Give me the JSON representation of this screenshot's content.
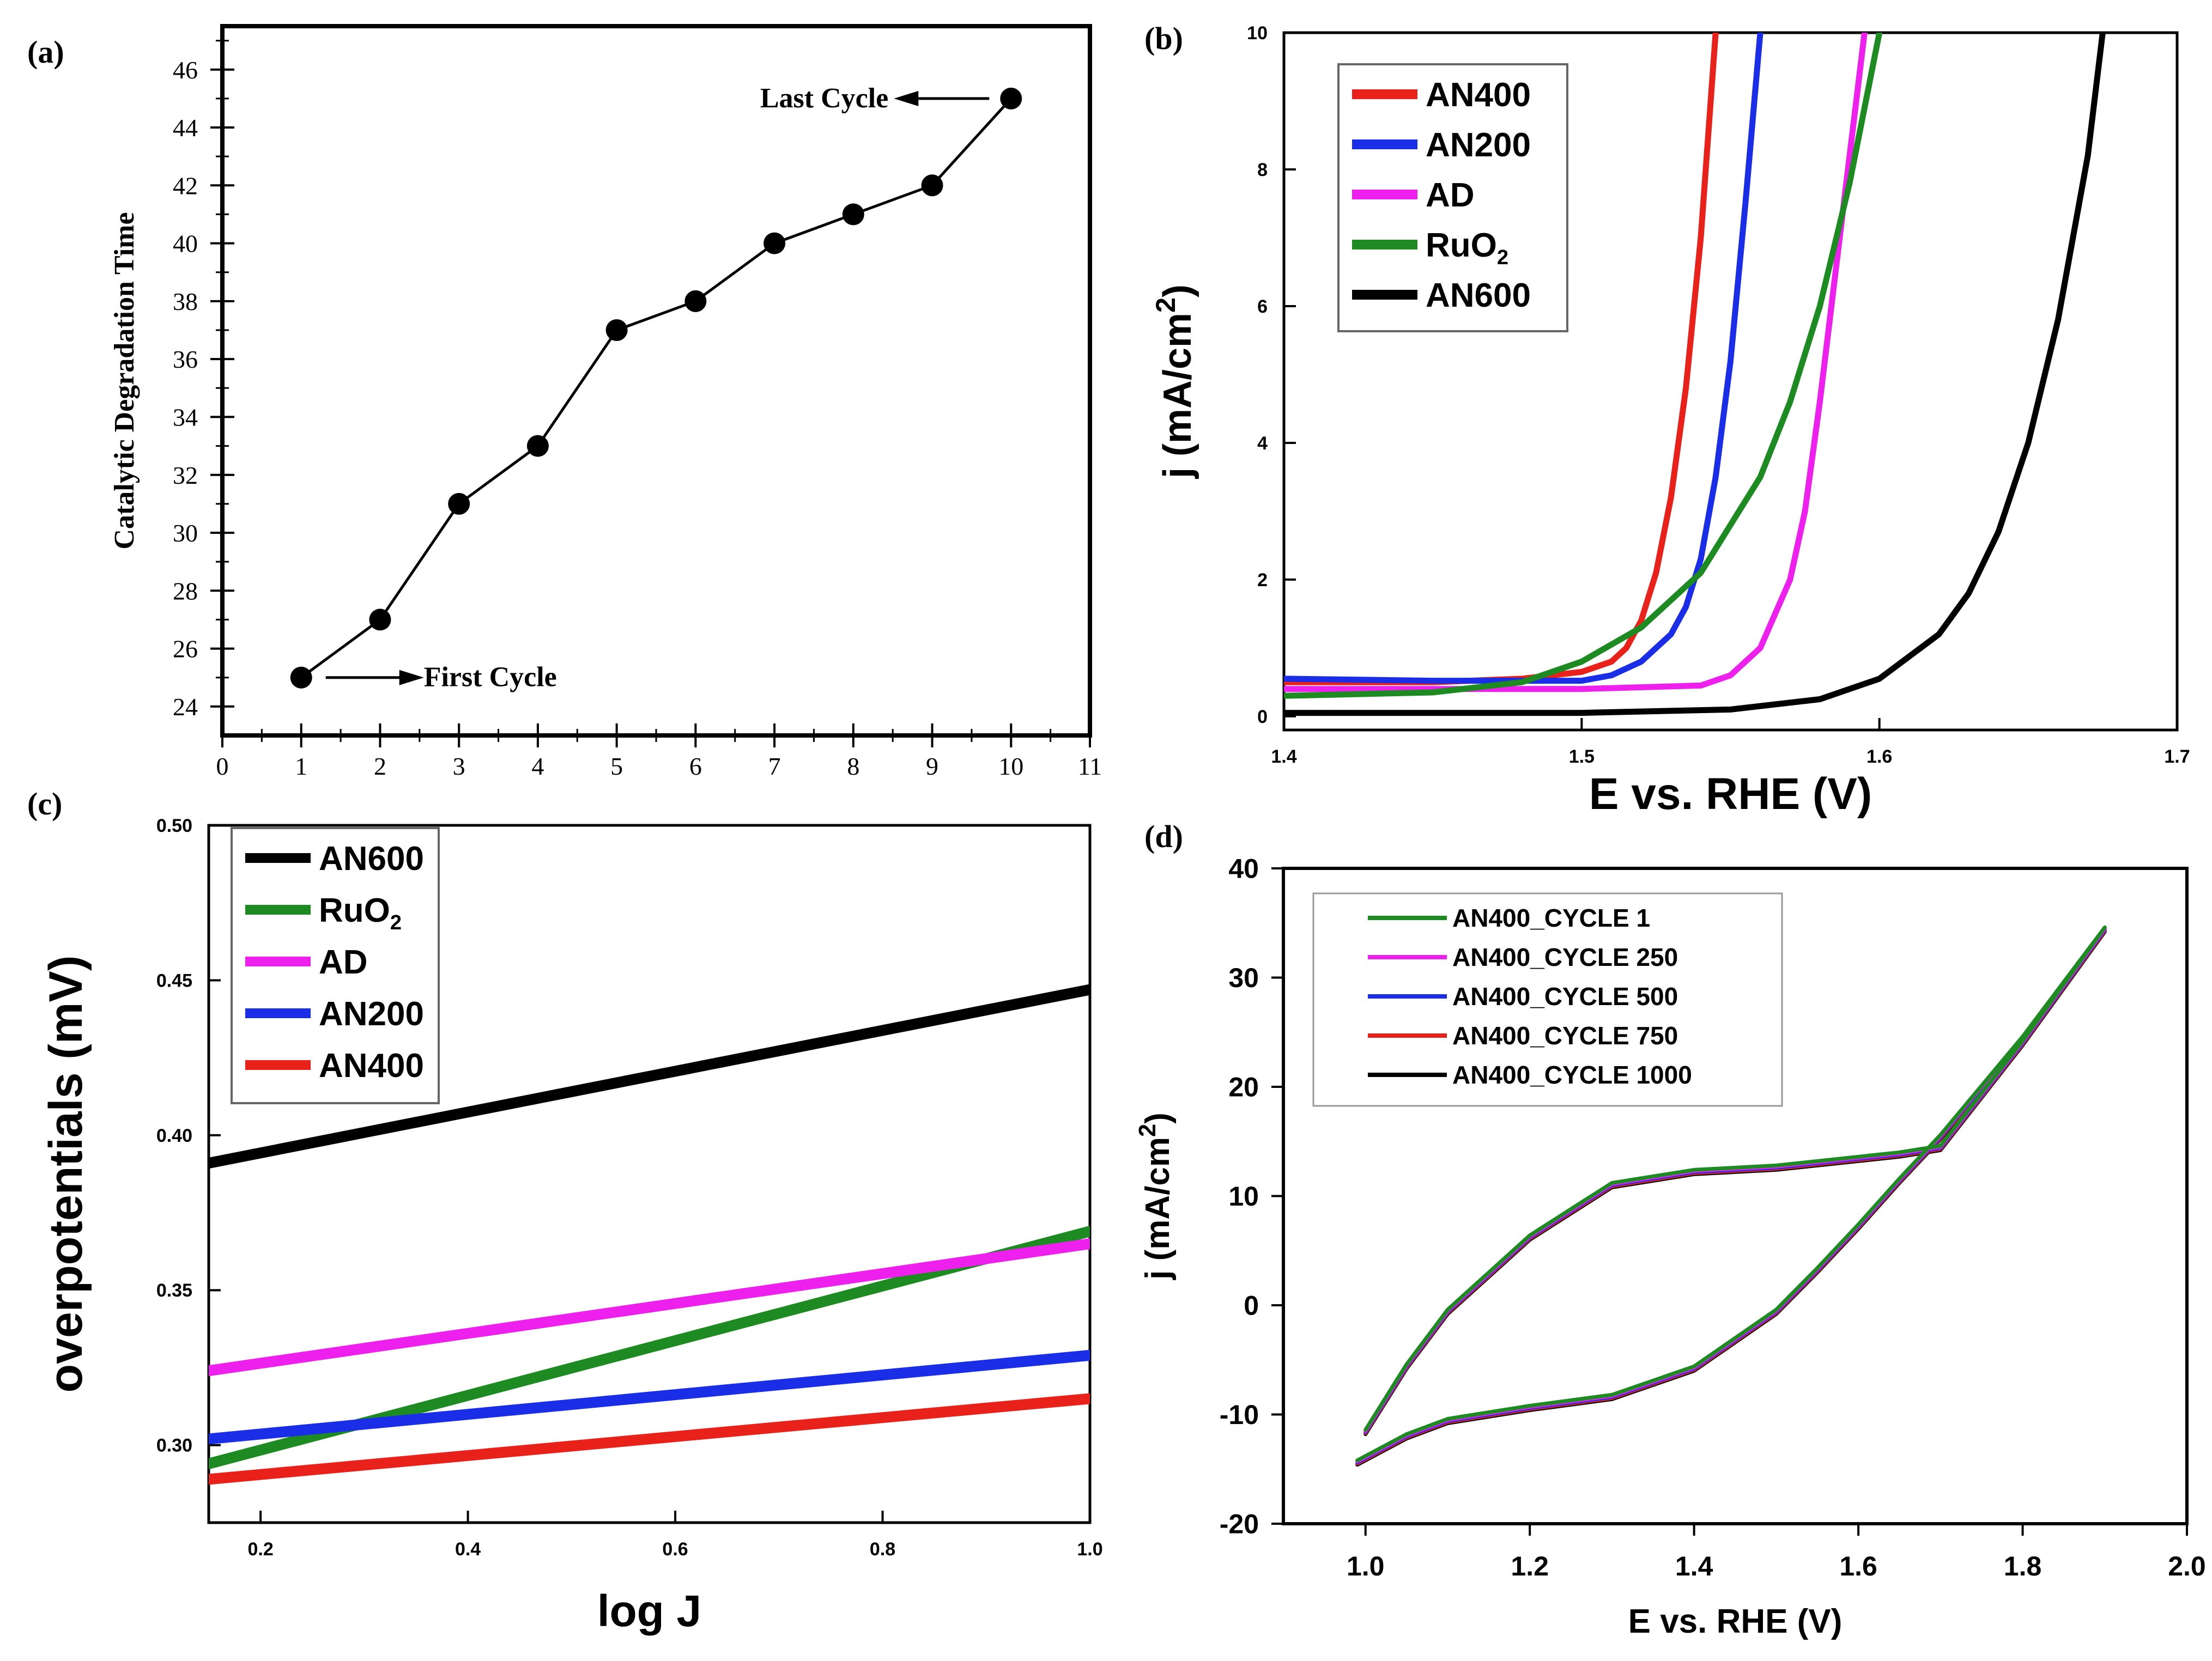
{
  "figure": {
    "panels": [
      "(a)",
      "(b)",
      "(c)",
      "(d)"
    ]
  },
  "chart_data": [
    {
      "id": "a",
      "panel_label": "(a)",
      "type": "line",
      "title": "",
      "xlabel": "",
      "ylabel": "Catalytic Degradation Time",
      "xlim": [
        0,
        11
      ],
      "ylim": [
        23,
        47.5
      ],
      "xticks": [
        0,
        1,
        2,
        3,
        4,
        5,
        6,
        7,
        8,
        9,
        10,
        11
      ],
      "yticks": [
        24,
        26,
        28,
        30,
        32,
        34,
        36,
        38,
        40,
        42,
        44,
        46
      ],
      "grid": false,
      "series": [
        {
          "name": "Catalytic Degradation Time",
          "color": "#000000",
          "x": [
            1,
            2,
            3,
            4,
            5,
            6,
            7,
            8,
            9,
            10
          ],
          "y": [
            25,
            27,
            31,
            33,
            37,
            38,
            40,
            41,
            42,
            45
          ]
        }
      ],
      "annotations": [
        {
          "text": "First Cycle",
          "x": 1,
          "y": 25
        },
        {
          "text": "Last Cycle",
          "x": 10,
          "y": 45
        }
      ]
    },
    {
      "id": "b",
      "panel_label": "(b)",
      "type": "line",
      "title": "",
      "xlabel": "E vs. RHE (V)",
      "ylabel": "j (mA/cm2)",
      "xlim": [
        1.4,
        1.7
      ],
      "ylim": [
        -0.2,
        10
      ],
      "xticks": [
        1.4,
        1.5,
        1.6,
        1.7
      ],
      "xtick_labels": [
        "1.4",
        "1.5",
        "1.6",
        "1.7"
      ],
      "yticks": [
        0,
        2,
        4,
        6,
        8,
        10
      ],
      "grid": false,
      "legend": "top-left",
      "series": [
        {
          "name": "AN400",
          "color": "#e8211b",
          "x": [
            1.4,
            1.45,
            1.48,
            1.5,
            1.51,
            1.515,
            1.52,
            1.525,
            1.53,
            1.535,
            1.54,
            1.545
          ],
          "y": [
            0.5,
            0.5,
            0.55,
            0.65,
            0.8,
            1.0,
            1.4,
            2.1,
            3.2,
            4.8,
            7.0,
            10.0
          ]
        },
        {
          "name": "AN200",
          "color": "#1a2ee8",
          "x": [
            1.4,
            1.45,
            1.5,
            1.51,
            1.52,
            1.53,
            1.535,
            1.54,
            1.545,
            1.55,
            1.555,
            1.56
          ],
          "y": [
            0.55,
            0.52,
            0.52,
            0.6,
            0.8,
            1.2,
            1.6,
            2.3,
            3.5,
            5.2,
            7.5,
            10.0
          ]
        },
        {
          "name": "AD",
          "color": "#ee20ee",
          "x": [
            1.4,
            1.5,
            1.54,
            1.55,
            1.56,
            1.57,
            1.575,
            1.58,
            1.585,
            1.59,
            1.595
          ],
          "y": [
            0.4,
            0.4,
            0.45,
            0.6,
            1.0,
            2.0,
            3.0,
            4.6,
            6.4,
            8.2,
            10.0
          ]
        },
        {
          "name": "RuO2",
          "color": "#1d8a22",
          "x": [
            1.4,
            1.45,
            1.48,
            1.5,
            1.52,
            1.54,
            1.56,
            1.57,
            1.58,
            1.59,
            1.6
          ],
          "y": [
            0.3,
            0.35,
            0.5,
            0.8,
            1.3,
            2.1,
            3.5,
            4.6,
            6.0,
            7.8,
            10.0
          ]
        },
        {
          "name": "AN600",
          "color": "#000000",
          "x": [
            1.4,
            1.5,
            1.55,
            1.58,
            1.6,
            1.62,
            1.63,
            1.64,
            1.65,
            1.66,
            1.67,
            1.675
          ],
          "y": [
            0.05,
            0.05,
            0.1,
            0.25,
            0.55,
            1.2,
            1.8,
            2.7,
            4.0,
            5.8,
            8.2,
            10.0
          ]
        }
      ]
    },
    {
      "id": "c",
      "panel_label": "(c)",
      "type": "line",
      "title": "",
      "xlabel": "log J",
      "ylabel": "overpotentials (mV)",
      "xlim": [
        0.15,
        1.0
      ],
      "ylim": [
        0.275,
        0.5
      ],
      "xticks": [
        0.2,
        0.4,
        0.6,
        0.8,
        1.0
      ],
      "xtick_labels": [
        "0.2",
        "0.4",
        "0.6",
        "0.8",
        "1.0"
      ],
      "yticks": [
        0.3,
        0.35,
        0.4,
        0.45,
        0.5
      ],
      "ytick_labels": [
        "0.30",
        "0.35",
        "0.40",
        "0.45",
        "0.50"
      ],
      "grid": false,
      "legend": "top-left",
      "series": [
        {
          "name": "AN600",
          "color": "#000000",
          "x": [
            0.15,
            1.0
          ],
          "y": [
            0.391,
            0.447
          ]
        },
        {
          "name": "RuO2",
          "color": "#1d8a22",
          "x": [
            0.15,
            1.0
          ],
          "y": [
            0.294,
            0.369
          ]
        },
        {
          "name": "AD",
          "color": "#ee20ee",
          "x": [
            0.15,
            1.0
          ],
          "y": [
            0.324,
            0.365
          ]
        },
        {
          "name": "AN200",
          "color": "#1a2ee8",
          "x": [
            0.15,
            1.0
          ],
          "y": [
            0.302,
            0.329
          ]
        },
        {
          "name": "AN400",
          "color": "#e8211b",
          "x": [
            0.15,
            1.0
          ],
          "y": [
            0.289,
            0.315
          ]
        }
      ]
    },
    {
      "id": "d",
      "panel_label": "(d)",
      "type": "line",
      "title": "",
      "xlabel": "E vs. RHE (V)",
      "ylabel": "j (mA/cm2)",
      "xlim": [
        0.9,
        2.0
      ],
      "ylim": [
        -20,
        40
      ],
      "xticks": [
        1.0,
        1.2,
        1.4,
        1.6,
        1.8,
        2.0
      ],
      "xtick_labels": [
        "1.0",
        "1.2",
        "1.4",
        "1.6",
        "1.8",
        "2.0"
      ],
      "yticks": [
        -20,
        -10,
        0,
        10,
        20,
        30,
        40
      ],
      "grid": false,
      "legend": "top-left",
      "legend_entries": [
        {
          "name": "AN400_CYCLE 1",
          "color": "#1d8a22"
        },
        {
          "name": "AN400_CYCLE 250",
          "color": "#ee20ee"
        },
        {
          "name": "AN400_CYCLE 500",
          "color": "#1a2ee8"
        },
        {
          "name": "AN400_CYCLE 750",
          "color": "#e8211b"
        },
        {
          "name": "AN400_CYCLE 1000",
          "color": "#000000"
        }
      ],
      "series": [
        {
          "name": "AN400_CYCLE 1000",
          "color": "#000000",
          "x": [
            0.99,
            1.05,
            1.1,
            1.2,
            1.3,
            1.4,
            1.5,
            1.55,
            1.6,
            1.65,
            1.7,
            1.8,
            1.9,
            1.9,
            1.8,
            1.7,
            1.65,
            1.5,
            1.4,
            1.3,
            1.2,
            1.1,
            1.05,
            1.0
          ],
          "y": [
            -14.6,
            -12.2,
            -10.8,
            -9.6,
            -8.6,
            -6.0,
            -0.8,
            3.0,
            7.0,
            11.2,
            15.2,
            24.2,
            34.2,
            34.2,
            23.8,
            14.2,
            13.6,
            12.4,
            12.0,
            10.8,
            6.0,
            -0.8,
            -5.8,
            -11.8
          ]
        },
        {
          "name": "AN400_CYCLE 750",
          "color": "#e8211b",
          "x": [
            0.99,
            1.05,
            1.1,
            1.2,
            1.3,
            1.4,
            1.5,
            1.55,
            1.6,
            1.65,
            1.7,
            1.8,
            1.9,
            1.9,
            1.8,
            1.7,
            1.65,
            1.5,
            1.4,
            1.3,
            1.2,
            1.1,
            1.05,
            1.0
          ],
          "y": [
            -14.5,
            -12.1,
            -10.7,
            -9.5,
            -8.5,
            -5.9,
            -0.7,
            3.1,
            7.1,
            11.3,
            15.3,
            24.3,
            34.3,
            34.3,
            23.9,
            14.3,
            13.7,
            12.5,
            12.1,
            10.9,
            6.1,
            -0.7,
            -5.7,
            -11.7
          ]
        },
        {
          "name": "AN400_CYCLE 500",
          "color": "#1a2ee8",
          "x": [
            0.99,
            1.05,
            1.1,
            1.2,
            1.3,
            1.4,
            1.5,
            1.55,
            1.6,
            1.65,
            1.7,
            1.8,
            1.9,
            1.9,
            1.8,
            1.7,
            1.65,
            1.5,
            1.4,
            1.3,
            1.2,
            1.1,
            1.05,
            1.0
          ],
          "y": [
            -14.4,
            -12.0,
            -10.6,
            -9.4,
            -8.4,
            -5.8,
            -0.6,
            3.2,
            7.2,
            11.4,
            15.4,
            24.4,
            34.4,
            34.4,
            24.0,
            14.4,
            13.8,
            12.6,
            12.2,
            11.0,
            6.2,
            -0.6,
            -5.6,
            -11.6
          ]
        },
        {
          "name": "AN400_CYCLE 250",
          "color": "#ee20ee",
          "x": [
            0.99,
            1.05,
            1.1,
            1.2,
            1.3,
            1.4,
            1.5,
            1.55,
            1.6,
            1.65,
            1.7,
            1.8,
            1.9,
            1.9,
            1.8,
            1.7,
            1.65,
            1.5,
            1.4,
            1.3,
            1.2,
            1.1,
            1.05,
            1.0
          ],
          "y": [
            -14.3,
            -11.9,
            -10.5,
            -9.3,
            -8.3,
            -5.7,
            -0.5,
            3.3,
            7.3,
            11.5,
            15.5,
            24.5,
            34.5,
            34.5,
            24.1,
            14.5,
            13.9,
            12.7,
            12.3,
            11.1,
            6.3,
            -0.5,
            -5.5,
            -11.5
          ]
        },
        {
          "name": "AN400_CYCLE 1",
          "color": "#1d8a22",
          "x": [
            0.99,
            1.05,
            1.1,
            1.2,
            1.3,
            1.4,
            1.5,
            1.55,
            1.6,
            1.65,
            1.7,
            1.8,
            1.9,
            1.9,
            1.8,
            1.7,
            1.65,
            1.5,
            1.4,
            1.3,
            1.2,
            1.1,
            1.05,
            1.0
          ],
          "y": [
            -14.2,
            -11.8,
            -10.4,
            -9.2,
            -8.2,
            -5.6,
            -0.4,
            3.4,
            7.4,
            11.6,
            15.6,
            24.6,
            34.6,
            34.6,
            24.2,
            14.6,
            14.0,
            12.8,
            12.4,
            11.2,
            6.4,
            -0.4,
            -5.4,
            -11.4
          ]
        }
      ]
    }
  ]
}
